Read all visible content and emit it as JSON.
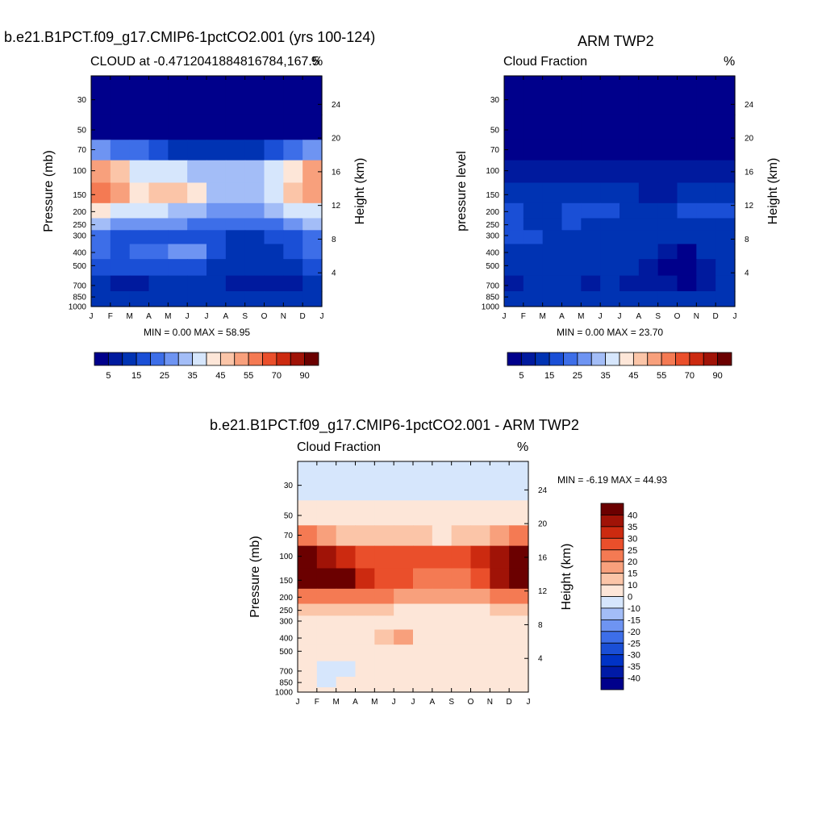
{
  "palettes": {
    "abs": [
      "#00008b",
      "#001a9e",
      "#0033b3",
      "#1a4fd6",
      "#3d6ee8",
      "#6e94f2",
      "#a3bdf7",
      "#d6e6fc",
      "#fde6d8",
      "#fbc5a8",
      "#f8a07c",
      "#f47a53",
      "#ea4f2b",
      "#cc2a10",
      "#a01307",
      "#6b0000"
    ],
    "diff": [
      "#00008b",
      "#001aa6",
      "#0033c6",
      "#1a4fd6",
      "#3d6ee8",
      "#6e94f2",
      "#a3bdf7",
      "#d6e6fc",
      "#fde6d8",
      "#fbc5a8",
      "#f8a07c",
      "#f47a53",
      "#ea4f2b",
      "#cc2a10",
      "#a01307",
      "#6b0000"
    ]
  },
  "chart_data": [
    {
      "type": "heatmap",
      "title": "b.e21.B1PCT.f09_g17.CMIP6-1pctCO2.001 (yrs 100-124)",
      "subtitle_left": "CLOUD at -0.4712041884816784,167.5",
      "subtitle_right": "%",
      "xlabel": "",
      "ylabel": "Pressure (mb)",
      "ylabel_right": "Height (km)",
      "x_ticks": [
        "J",
        "F",
        "M",
        "A",
        "M",
        "J",
        "J",
        "A",
        "S",
        "O",
        "N",
        "D",
        "J"
      ],
      "y_ticks": [
        "30",
        "50",
        "70",
        "100",
        "150",
        "200",
        "250",
        "300",
        "400",
        "500",
        "700",
        "850",
        "1000"
      ],
      "y_right_ticks": [
        "24",
        "20",
        "16",
        "12",
        "8",
        "4"
      ],
      "min_max_text": "MIN =   0.00 MAX =  58.95",
      "colorbar_labels": [
        "5",
        "15",
        "25",
        "35",
        "45",
        "55",
        "70",
        "90"
      ],
      "levels": [
        5,
        10,
        15,
        20,
        25,
        30,
        35,
        40,
        45,
        50,
        55,
        60,
        70,
        80,
        90
      ],
      "months": [
        "J",
        "F",
        "M",
        "A",
        "M",
        "J",
        "J",
        "A",
        "S",
        "O",
        "N",
        "D"
      ],
      "pressure": [
        30,
        50,
        70,
        100,
        150,
        200,
        250,
        300,
        400,
        500,
        700,
        850,
        1000
      ],
      "values": [
        [
          0,
          0,
          0,
          0,
          0,
          0,
          0,
          0,
          0,
          0,
          0,
          0
        ],
        [
          4,
          3,
          2,
          2,
          1,
          1,
          1,
          1,
          1,
          1,
          2,
          3
        ],
        [
          28,
          24,
          20,
          15,
          13,
          12,
          12,
          12,
          13,
          16,
          22,
          27
        ],
        [
          50,
          46,
          38,
          37,
          36,
          34,
          32,
          30,
          31,
          38,
          44,
          50
        ],
        [
          55,
          51,
          44,
          46,
          48,
          41,
          33,
          30,
          32,
          38,
          45,
          53
        ],
        [
          41,
          38,
          36,
          35,
          34,
          32,
          28,
          27,
          28,
          30,
          35,
          39
        ],
        [
          30,
          28,
          27,
          26,
          25,
          24,
          22,
          21,
          22,
          24,
          27,
          30
        ],
        [
          20,
          19,
          18,
          17,
          18,
          18,
          16,
          14,
          14,
          16,
          18,
          20
        ],
        [
          21,
          19,
          23,
          21,
          25,
          26,
          18,
          12,
          11,
          13,
          17,
          20
        ],
        [
          15,
          16,
          17,
          16,
          16,
          17,
          14,
          10,
          10,
          12,
          14,
          15
        ],
        [
          10,
          7,
          9,
          10,
          12,
          12,
          10,
          7,
          7,
          8,
          9,
          10
        ],
        [
          13,
          12,
          11,
          13,
          14,
          14,
          12,
          10,
          10,
          11,
          12,
          13
        ],
        [
          12,
          12,
          12,
          12,
          12,
          12,
          12,
          12,
          12,
          12,
          12,
          12
        ]
      ]
    },
    {
      "type": "heatmap",
      "title": "ARM TWP2",
      "subtitle_left": "Cloud Fraction",
      "subtitle_right": "%",
      "xlabel": "",
      "ylabel": "pressure level",
      "ylabel_right": "Height (km)",
      "x_ticks": [
        "J",
        "F",
        "M",
        "A",
        "M",
        "J",
        "J",
        "A",
        "S",
        "O",
        "N",
        "D",
        "J"
      ],
      "y_ticks": [
        "30",
        "50",
        "70",
        "100",
        "150",
        "200",
        "250",
        "300",
        "400",
        "500",
        "700",
        "850",
        "1000"
      ],
      "y_right_ticks": [
        "24",
        "20",
        "16",
        "12",
        "8",
        "4"
      ],
      "min_max_text": "MIN =   0.00 MAX =  23.70",
      "colorbar_labels": [
        "5",
        "15",
        "25",
        "35",
        "45",
        "55",
        "70",
        "90"
      ],
      "levels": [
        5,
        10,
        15,
        20,
        25,
        30,
        35,
        40,
        45,
        50,
        55,
        60,
        70,
        80,
        90
      ],
      "months": [
        "J",
        "F",
        "M",
        "A",
        "M",
        "J",
        "J",
        "A",
        "S",
        "O",
        "N",
        "D"
      ],
      "pressure": [
        30,
        50,
        70,
        100,
        150,
        200,
        250,
        300,
        400,
        500,
        700,
        850,
        1000
      ],
      "values": [
        [
          0,
          0,
          0,
          0,
          0,
          0,
          0,
          0,
          0,
          0,
          0,
          0
        ],
        [
          0,
          0,
          0,
          0,
          0,
          0,
          0,
          0,
          0,
          0,
          0,
          0
        ],
        [
          2,
          2,
          2,
          2,
          2,
          2,
          2,
          2,
          2,
          2,
          2,
          2
        ],
        [
          7,
          8,
          8,
          7,
          7,
          6,
          6,
          5,
          6,
          6,
          6,
          7
        ],
        [
          14,
          13,
          13,
          12,
          11,
          11,
          10,
          8,
          9,
          11,
          12,
          13
        ],
        [
          17,
          14,
          13,
          16,
          18,
          15,
          14,
          13,
          13,
          15,
          16,
          15
        ],
        [
          16,
          14,
          14,
          15,
          14,
          14,
          14,
          13,
          13,
          14,
          14,
          14
        ],
        [
          15,
          15,
          13,
          13,
          13,
          13,
          13,
          12,
          10,
          12,
          13,
          14
        ],
        [
          14,
          13,
          13,
          14,
          13,
          13,
          12,
          11,
          5,
          4,
          10,
          12
        ],
        [
          13,
          12,
          12,
          12,
          11,
          12,
          11,
          9,
          4,
          3,
          8,
          11
        ],
        [
          8,
          11,
          11,
          10,
          6,
          11,
          6,
          9,
          6,
          4,
          9,
          10
        ],
        [
          11,
          12,
          12,
          12,
          12,
          12,
          12,
          12,
          12,
          12,
          12,
          12
        ],
        [
          12,
          12,
          12,
          12,
          12,
          12,
          12,
          12,
          12,
          12,
          12,
          12
        ]
      ]
    },
    {
      "type": "heatmap",
      "title": "b.e21.B1PCT.f09_g17.CMIP6-1pctCO2.001 - ARM TWP2",
      "subtitle_left": "Cloud Fraction",
      "subtitle_right": "%",
      "xlabel": "",
      "ylabel": "Pressure (mb)",
      "ylabel_right": "Height (km)",
      "x_ticks": [
        "J",
        "F",
        "M",
        "A",
        "M",
        "J",
        "J",
        "A",
        "S",
        "O",
        "N",
        "D",
        "J"
      ],
      "y_ticks": [
        "30",
        "50",
        "70",
        "100",
        "150",
        "200",
        "250",
        "300",
        "400",
        "500",
        "700",
        "850",
        "1000"
      ],
      "y_right_ticks": [
        "24",
        "20",
        "16",
        "12",
        "8",
        "4"
      ],
      "min_max_text": "MIN =  -6.19 MAX =  44.93",
      "colorbar_labels": [
        "40",
        "35",
        "30",
        "25",
        "20",
        "15",
        "10",
        "0",
        "-10",
        "-15",
        "-20",
        "-25",
        "-30",
        "-35",
        "-40"
      ],
      "levels": [
        -40,
        -35,
        -30,
        -25,
        -20,
        -15,
        -10,
        0,
        10,
        15,
        20,
        25,
        30,
        35,
        40
      ],
      "months": [
        "J",
        "F",
        "M",
        "A",
        "M",
        "J",
        "J",
        "A",
        "S",
        "O",
        "N",
        "D"
      ],
      "pressure": [
        30,
        50,
        70,
        100,
        150,
        200,
        250,
        300,
        400,
        500,
        700,
        850,
        1000
      ],
      "values": [
        [
          -2,
          -2,
          -2,
          -2,
          -2,
          -2,
          -2,
          -2,
          -2,
          -2,
          -2,
          -2
        ],
        [
          3,
          3,
          2,
          2,
          1,
          1,
          1,
          1,
          1,
          1,
          2,
          3
        ],
        [
          22,
          18,
          14,
          11,
          10,
          10,
          10,
          9,
          10,
          12,
          16,
          22
        ],
        [
          41,
          38,
          31,
          28,
          27,
          27,
          26,
          25,
          26,
          30,
          37,
          42
        ],
        [
          43,
          41,
          40,
          31,
          29,
          28,
          24,
          22,
          24,
          27,
          36,
          42
        ],
        [
          24,
          23,
          22,
          21,
          20,
          19,
          17,
          15,
          15,
          17,
          21,
          24
        ],
        [
          14,
          13,
          12,
          11,
          10,
          9,
          8,
          7,
          7,
          8,
          10,
          13
        ],
        [
          6,
          6,
          6,
          5,
          5,
          5,
          4,
          3,
          3,
          4,
          5,
          6
        ],
        [
          8,
          7,
          9,
          7,
          14,
          16,
          7,
          4,
          4,
          6,
          8,
          8
        ],
        [
          4,
          4,
          6,
          5,
          8,
          7,
          5,
          3,
          3,
          4,
          5,
          4
        ],
        [
          2,
          -3,
          -2,
          2,
          4,
          4,
          3,
          2,
          2,
          3,
          2,
          2
        ],
        [
          1,
          -2,
          1,
          2,
          2,
          2,
          2,
          2,
          2,
          2,
          1,
          1
        ],
        [
          0,
          0,
          0,
          0,
          0,
          0,
          0,
          0,
          0,
          0,
          0,
          0
        ]
      ]
    }
  ]
}
